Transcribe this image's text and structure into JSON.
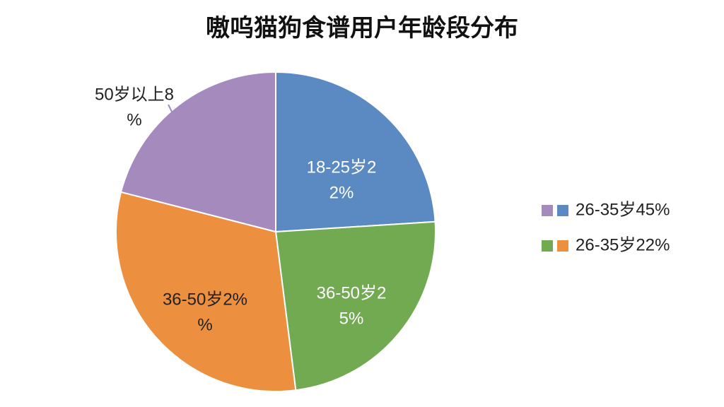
{
  "chart_data": {
    "type": "pie",
    "title": "嗷呜猫狗食谱用户年龄段分布",
    "slices": [
      {
        "label": [
          "18-25岁2",
          "2%"
        ],
        "value": 24,
        "color": "#5a8ac1"
      },
      {
        "label": [
          "36-50岁2",
          "5%"
        ],
        "value": 24,
        "color": "#72aa52"
      },
      {
        "label": [
          "36-50岁2%",
          "%"
        ],
        "value": 31,
        "color": "#ec8f3e"
      },
      {
        "label": [
          "50岁以上8",
          "%"
        ],
        "value": 21,
        "color": "#a58bbd"
      }
    ],
    "legend": [
      {
        "label": "26-35岁45%",
        "colors": [
          "#a58bbd",
          "#5a8ac1"
        ]
      },
      {
        "label": "26-35岁22%",
        "colors": [
          "#72aa52",
          "#ec8f3e"
        ]
      }
    ]
  }
}
